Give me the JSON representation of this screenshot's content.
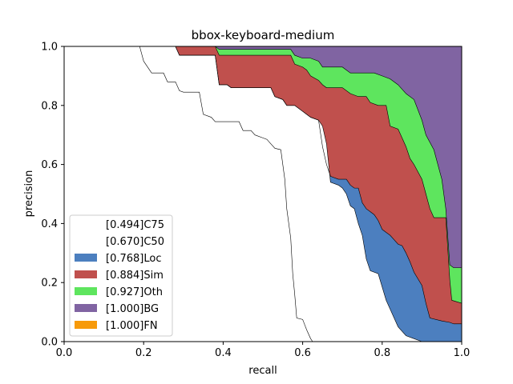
{
  "chart_data": {
    "type": "area",
    "title": "bbox-keyboard-medium",
    "xlabel": "recall",
    "ylabel": "precision",
    "xlim": [
      0,
      1
    ],
    "ylim": [
      0,
      1
    ],
    "xticks": [
      "0.0",
      "0.2",
      "0.4",
      "0.6",
      "0.8",
      "1.0"
    ],
    "yticks": [
      "0.0",
      "0.2",
      "0.4",
      "0.6",
      "0.8",
      "1.0"
    ],
    "grid": false,
    "legend_position": "lower-left",
    "series": [
      {
        "name": "[0.494]C75",
        "color": "#ffffff",
        "points": [
          [
            0,
            1
          ],
          [
            0.19,
            1
          ],
          [
            0.2,
            0.95
          ],
          [
            0.22,
            0.91
          ],
          [
            0.25,
            0.91
          ],
          [
            0.26,
            0.88
          ],
          [
            0.28,
            0.88
          ],
          [
            0.29,
            0.85
          ],
          [
            0.3,
            0.845
          ],
          [
            0.34,
            0.845
          ],
          [
            0.35,
            0.77
          ],
          [
            0.37,
            0.76
          ],
          [
            0.38,
            0.745
          ],
          [
            0.44,
            0.745
          ],
          [
            0.45,
            0.715
          ],
          [
            0.47,
            0.715
          ],
          [
            0.48,
            0.7
          ],
          [
            0.5,
            0.69
          ],
          [
            0.51,
            0.685
          ],
          [
            0.52,
            0.67
          ],
          [
            0.53,
            0.655
          ],
          [
            0.545,
            0.65
          ],
          [
            0.555,
            0.55
          ],
          [
            0.56,
            0.45
          ],
          [
            0.57,
            0.35
          ],
          [
            0.575,
            0.23
          ],
          [
            0.58,
            0.16
          ],
          [
            0.585,
            0.08
          ],
          [
            0.6,
            0.075
          ],
          [
            0.61,
            0.04
          ],
          [
            0.62,
            0.01
          ],
          [
            0.625,
            0
          ],
          [
            1,
            0
          ]
        ]
      },
      {
        "name": "[0.670]C50",
        "color": "#ffffff",
        "points": [
          [
            0,
            1
          ],
          [
            0.28,
            1
          ],
          [
            0.29,
            0.97
          ],
          [
            0.38,
            0.97
          ],
          [
            0.39,
            0.87
          ],
          [
            0.41,
            0.87
          ],
          [
            0.42,
            0.86
          ],
          [
            0.52,
            0.86
          ],
          [
            0.53,
            0.83
          ],
          [
            0.55,
            0.82
          ],
          [
            0.56,
            0.8
          ],
          [
            0.58,
            0.8
          ],
          [
            0.6,
            0.78
          ],
          [
            0.62,
            0.76
          ],
          [
            0.64,
            0.75
          ],
          [
            0.65,
            0.73
          ],
          [
            0.66,
            0.67
          ],
          [
            0.67,
            0.54
          ],
          [
            0.69,
            0.53
          ],
          [
            0.7,
            0.52
          ],
          [
            0.71,
            0.5
          ],
          [
            0.72,
            0.46
          ],
          [
            0.73,
            0.45
          ],
          [
            0.74,
            0.4
          ],
          [
            0.75,
            0.36
          ],
          [
            0.76,
            0.28
          ],
          [
            0.77,
            0.24
          ],
          [
            0.79,
            0.23
          ],
          [
            0.81,
            0.14
          ],
          [
            0.82,
            0.11
          ],
          [
            0.84,
            0.05
          ],
          [
            0.86,
            0.02
          ],
          [
            0.88,
            0.01
          ],
          [
            0.9,
            0
          ],
          [
            1,
            0
          ]
        ]
      },
      {
        "name": "[0.768]Loc",
        "color": "#4c7fbf",
        "points": [
          [
            0,
            1
          ],
          [
            0.28,
            1
          ],
          [
            0.29,
            0.97
          ],
          [
            0.38,
            0.97
          ],
          [
            0.39,
            0.87
          ],
          [
            0.41,
            0.87
          ],
          [
            0.42,
            0.86
          ],
          [
            0.52,
            0.86
          ],
          [
            0.53,
            0.83
          ],
          [
            0.55,
            0.82
          ],
          [
            0.56,
            0.8
          ],
          [
            0.58,
            0.8
          ],
          [
            0.6,
            0.78
          ],
          [
            0.62,
            0.76
          ],
          [
            0.64,
            0.75
          ],
          [
            0.65,
            0.66
          ],
          [
            0.66,
            0.6
          ],
          [
            0.67,
            0.56
          ],
          [
            0.69,
            0.55
          ],
          [
            0.71,
            0.55
          ],
          [
            0.72,
            0.53
          ],
          [
            0.73,
            0.52
          ],
          [
            0.74,
            0.52
          ],
          [
            0.75,
            0.47
          ],
          [
            0.76,
            0.45
          ],
          [
            0.77,
            0.44
          ],
          [
            0.78,
            0.43
          ],
          [
            0.79,
            0.41
          ],
          [
            0.8,
            0.38
          ],
          [
            0.81,
            0.37
          ],
          [
            0.82,
            0.36
          ],
          [
            0.83,
            0.345
          ],
          [
            0.84,
            0.33
          ],
          [
            0.85,
            0.325
          ],
          [
            0.86,
            0.3
          ],
          [
            0.87,
            0.27
          ],
          [
            0.88,
            0.235
          ],
          [
            0.9,
            0.19
          ],
          [
            0.91,
            0.13
          ],
          [
            0.92,
            0.08
          ],
          [
            0.95,
            0.07
          ],
          [
            0.97,
            0.065
          ],
          [
            0.98,
            0.06
          ],
          [
            1,
            0.06
          ]
        ]
      },
      {
        "name": "[0.884]Sim",
        "color": "#c0504d",
        "points": [
          [
            0,
            1
          ],
          [
            0.28,
            1
          ],
          [
            0.29,
            1
          ],
          [
            0.38,
            1
          ],
          [
            0.39,
            0.97
          ],
          [
            0.41,
            0.97
          ],
          [
            0.42,
            0.97
          ],
          [
            0.57,
            0.97
          ],
          [
            0.58,
            0.94
          ],
          [
            0.6,
            0.93
          ],
          [
            0.61,
            0.92
          ],
          [
            0.62,
            0.9
          ],
          [
            0.64,
            0.885
          ],
          [
            0.65,
            0.87
          ],
          [
            0.66,
            0.86
          ],
          [
            0.7,
            0.86
          ],
          [
            0.72,
            0.84
          ],
          [
            0.74,
            0.83
          ],
          [
            0.76,
            0.83
          ],
          [
            0.77,
            0.81
          ],
          [
            0.79,
            0.8
          ],
          [
            0.81,
            0.8
          ],
          [
            0.82,
            0.73
          ],
          [
            0.84,
            0.72
          ],
          [
            0.85,
            0.69
          ],
          [
            0.86,
            0.66
          ],
          [
            0.87,
            0.62
          ],
          [
            0.88,
            0.6
          ],
          [
            0.9,
            0.55
          ],
          [
            0.91,
            0.5
          ],
          [
            0.92,
            0.45
          ],
          [
            0.93,
            0.42
          ],
          [
            0.96,
            0.42
          ],
          [
            0.97,
            0.21
          ],
          [
            0.975,
            0.14
          ],
          [
            1,
            0.13
          ]
        ]
      },
      {
        "name": "[0.927]Oth",
        "color": "#5ee55e",
        "points": [
          [
            0,
            1
          ],
          [
            0.38,
            1
          ],
          [
            0.39,
            0.99
          ],
          [
            0.57,
            0.99
          ],
          [
            0.58,
            0.97
          ],
          [
            0.6,
            0.96
          ],
          [
            0.62,
            0.96
          ],
          [
            0.64,
            0.95
          ],
          [
            0.65,
            0.93
          ],
          [
            0.7,
            0.93
          ],
          [
            0.72,
            0.91
          ],
          [
            0.78,
            0.91
          ],
          [
            0.8,
            0.9
          ],
          [
            0.82,
            0.89
          ],
          [
            0.84,
            0.87
          ],
          [
            0.86,
            0.84
          ],
          [
            0.88,
            0.82
          ],
          [
            0.9,
            0.75
          ],
          [
            0.91,
            0.7
          ],
          [
            0.93,
            0.65
          ],
          [
            0.95,
            0.55
          ],
          [
            0.96,
            0.45
          ],
          [
            0.97,
            0.26
          ],
          [
            0.98,
            0.25
          ],
          [
            1,
            0.25
          ]
        ]
      },
      {
        "name": "[1.000]BG",
        "color": "#8064a2",
        "points": [
          [
            0,
            1
          ],
          [
            1,
            1
          ]
        ]
      },
      {
        "name": "[1.000]FN",
        "color": "#f79a0a",
        "points": [
          [
            0,
            1
          ],
          [
            1,
            1
          ]
        ]
      }
    ]
  }
}
